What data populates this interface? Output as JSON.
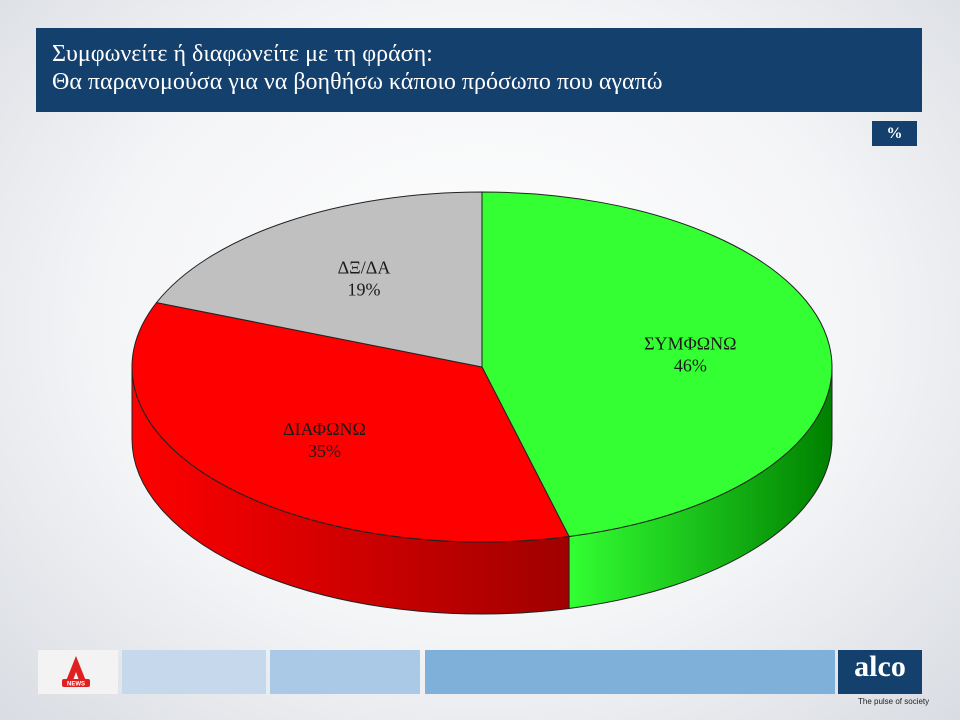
{
  "header": {
    "title_line1": "Συμφωνείτε ή διαφωνείτε με τη φράση:",
    "title_line2": "Θα παρανομούσα  για να βοηθήσω κάποιο πρόσωπο που αγαπώ"
  },
  "unit_badge": "%",
  "chart_data": {
    "type": "pie",
    "title": "Συμφωνείτε ή διαφωνείτε με τη φράση: Θα παρανομούσα  για να βοηθήσω κάποιο πρόσωπο που αγαπώ",
    "unit": "%",
    "slices": [
      {
        "label": "ΣΥΜΦΩΝΩ",
        "value": 46,
        "value_label": "46%",
        "color": "#33ff33",
        "side_color": "#008000"
      },
      {
        "label": "ΔΙΑΦΩΝΩ",
        "value": 35,
        "value_label": "35%",
        "color": "#ff0000",
        "side_color": "#a00000"
      },
      {
        "label": "ΔΞ/ΔΑ",
        "value": 19,
        "value_label": "19%",
        "color": "#c0c0c0",
        "side_color": "#808080"
      }
    ]
  },
  "footer": {
    "strip_colors": [
      "#c6d9ec",
      "#a9c9e6",
      "#7eb0da"
    ],
    "logo_left_icon": "alpha-news-logo-icon",
    "logo_left_text": "NEWS",
    "brand_name": "alco",
    "brand_tagline": "The pulse of society"
  }
}
